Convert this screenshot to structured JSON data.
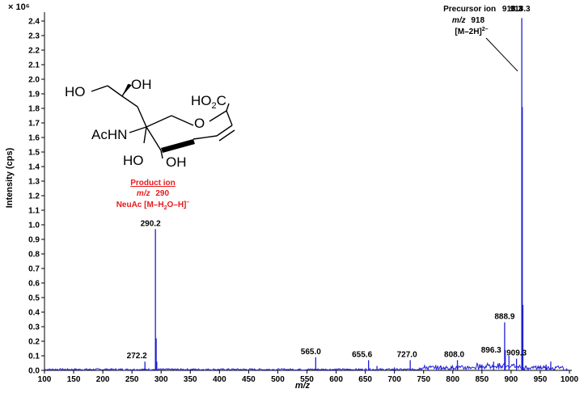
{
  "chart_data": {
    "type": "line",
    "title": "",
    "xlabel": "m/z",
    "ylabel": "Intensity (cps)",
    "y_multiplier_label": "× 10⁶",
    "xlim": [
      100,
      1000
    ],
    "ylim": [
      0,
      2.45
    ],
    "x_ticks": [
      100,
      150,
      200,
      250,
      300,
      350,
      400,
      450,
      500,
      550,
      600,
      650,
      700,
      750,
      800,
      850,
      900,
      950,
      1000
    ],
    "y_ticks": [
      0.0,
      0.1,
      0.2,
      0.3,
      0.4,
      0.5,
      0.6,
      0.7,
      0.8,
      0.9,
      1.0,
      1.1,
      1.2,
      1.3,
      1.4,
      1.5,
      1.6,
      1.7,
      1.8,
      1.9,
      2.0,
      2.1,
      2.2,
      2.3,
      2.4
    ],
    "grid": false,
    "line_color": "#1f1fd6",
    "peaks": [
      {
        "x": 272.2,
        "y": 0.06,
        "label": "272.2"
      },
      {
        "x": 290.2,
        "y": 0.97,
        "label": "290.2"
      },
      {
        "x": 565.0,
        "y": 0.09,
        "label": "565.0"
      },
      {
        "x": 655.6,
        "y": 0.07,
        "label": "655.6"
      },
      {
        "x": 727.0,
        "y": 0.07,
        "label": "727.0"
      },
      {
        "x": 808.0,
        "y": 0.07,
        "label": "808.0"
      },
      {
        "x": 888.9,
        "y": 0.33,
        "label": "888.9"
      },
      {
        "x": 896.3,
        "y": 0.1,
        "label": "896.3"
      },
      {
        "x": 909.3,
        "y": 0.08,
        "label": "909.3"
      },
      {
        "x": 918.3,
        "y": 2.42,
        "label": "918.3"
      }
    ],
    "minor_peaks": [
      {
        "x": 291.5,
        "y": 0.22
      },
      {
        "x": 292.5,
        "y": 0.06
      },
      {
        "x": 670.0,
        "y": 0.03
      },
      {
        "x": 700.0,
        "y": 0.02
      },
      {
        "x": 780.0,
        "y": 0.03
      },
      {
        "x": 850.0,
        "y": 0.04
      },
      {
        "x": 870.0,
        "y": 0.06
      },
      {
        "x": 890.0,
        "y": 0.14
      },
      {
        "x": 919.2,
        "y": 1.81
      },
      {
        "x": 920.2,
        "y": 0.45
      },
      {
        "x": 960.0,
        "y": 0.04
      },
      {
        "x": 968.0,
        "y": 0.06
      }
    ],
    "annotations": {
      "precursor": {
        "line1_a": "Precursor ion",
        "line1_b": "918.3",
        "line2_italic": "m/z",
        "line2_value": "918",
        "line3": "[M–2H]",
        "line3_sup": "2–",
        "color": "#000000"
      },
      "product": {
        "line1": "Product ion",
        "line2_italic": "m/z",
        "line2_value": "290",
        "line3": "NeuAc [M–H",
        "line3_sub": "2",
        "line3_b": "O–H]",
        "line3_sup": "–",
        "color": "#e8191c"
      }
    },
    "structure_labels": {
      "ho_top_left": "HO",
      "oh_top": "OH",
      "ho2c_a": "HO",
      "ho2c_sub": "2",
      "ho2c_b": "C",
      "achn": "AcHN",
      "ring_o": "O",
      "ho_bottom": "HO",
      "oh_bottom": "OH"
    }
  }
}
